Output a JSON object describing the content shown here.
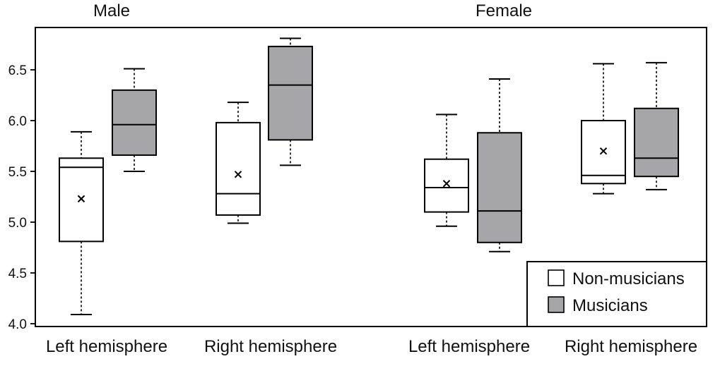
{
  "chart_data": {
    "type": "boxplot",
    "title": "",
    "xlabel": "",
    "ylabel": "",
    "ylim": [
      4.0,
      6.85
    ],
    "yticks": [
      4.0,
      4.5,
      5.0,
      5.5,
      6.0,
      6.5
    ],
    "ytick_labels": [
      "4.0",
      "4.5",
      "5.0",
      "5.5",
      "6.0",
      "6.5"
    ],
    "grid": false,
    "legend_position": "bottom-right",
    "panels": [
      {
        "title": "Male",
        "categories": [
          {
            "label": "Left hemisphere",
            "boxes": [
              {
                "series": "Non-musicians",
                "min": 4.09,
                "q1": 4.81,
                "median": 5.54,
                "q3": 5.63,
                "max": 5.89,
                "mean": 5.23
              },
              {
                "series": "Musicians",
                "min": 5.5,
                "q1": 5.66,
                "median": 5.96,
                "q3": 6.3,
                "max": 6.51,
                "mean": null
              }
            ]
          },
          {
            "label": "Right hemisphere",
            "boxes": [
              {
                "series": "Non-musicians",
                "min": 4.99,
                "q1": 5.07,
                "median": 5.28,
                "q3": 5.98,
                "max": 6.18,
                "mean": 5.47
              },
              {
                "series": "Musicians",
                "min": 5.56,
                "q1": 5.81,
                "median": 6.35,
                "q3": 6.73,
                "max": 6.81,
                "mean": null
              }
            ]
          }
        ]
      },
      {
        "title": "Female",
        "categories": [
          {
            "label": "Left hemisphere",
            "boxes": [
              {
                "series": "Non-musicians",
                "min": 4.96,
                "q1": 5.1,
                "median": 5.34,
                "q3": 5.62,
                "max": 6.06,
                "mean": 5.38
              },
              {
                "series": "Musicians",
                "min": 4.71,
                "q1": 4.8,
                "median": 5.11,
                "q3": 5.88,
                "max": 6.41,
                "mean": null
              }
            ]
          },
          {
            "label": "Right hemisphere",
            "boxes": [
              {
                "series": "Non-musicians",
                "min": 5.28,
                "q1": 5.38,
                "median": 5.46,
                "q3": 6.0,
                "max": 6.56,
                "mean": 5.7
              },
              {
                "series": "Musicians",
                "min": 5.32,
                "q1": 5.45,
                "median": 5.63,
                "q3": 6.12,
                "max": 6.57,
                "mean": null
              }
            ]
          }
        ]
      }
    ],
    "legend": [
      {
        "name": "Non-musicians",
        "color": "#ffffff"
      },
      {
        "name": "Musicians",
        "color": "#a6a6a8"
      }
    ]
  }
}
